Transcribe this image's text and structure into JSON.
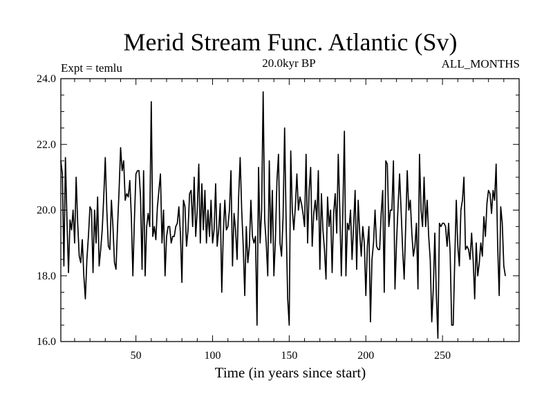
{
  "chart_data": {
    "type": "line",
    "title": "Merid Stream Func. Atlantic (Sv)",
    "experiment": "Expt = temlu",
    "subtitle": "20.0kyr BP",
    "period": "ALL_MONTHS",
    "xlabel": "Time (in years since start)",
    "ylabel": "",
    "xlim": [
      1,
      300
    ],
    "ylim": [
      16.0,
      24.0
    ],
    "xticks": [
      50,
      100,
      150,
      200,
      250
    ],
    "xtick_labels": [
      "50",
      "100",
      "150",
      "200",
      "250"
    ],
    "yticks": [
      16,
      18,
      20,
      22,
      24
    ],
    "ytick_labels": [
      "16.0",
      "18.0",
      "20.0",
      "22.0",
      "24.0"
    ],
    "grid": false,
    "series": [
      {
        "name": "Merid Stream Func. Atlantic",
        "color": "#000000",
        "x_start": 1,
        "x_step": 1,
        "values": [
          21.5,
          21.1,
          18.3,
          21.6,
          19.7,
          18.1,
          19.7,
          19.4,
          20.0,
          19.0,
          21.0,
          19.6,
          18.6,
          18.4,
          19.1,
          18.0,
          17.3,
          18.5,
          19.2,
          20.1,
          20.0,
          18.1,
          20.0,
          19.0,
          20.4,
          18.3,
          18.8,
          19.4,
          20.4,
          21.6,
          20.0,
          18.9,
          18.8,
          20.3,
          19.5,
          18.4,
          18.2,
          19.5,
          20.6,
          21.9,
          21.2,
          21.5,
          20.3,
          20.5,
          20.4,
          20.9,
          19.8,
          18.0,
          19.7,
          21.1,
          21.2,
          21.2,
          20.4,
          18.2,
          21.2,
          18.0,
          19.5,
          19.9,
          19.5,
          23.3,
          19.2,
          19.5,
          19.1,
          20.1,
          20.6,
          21.1,
          19.0,
          20.0,
          18.0,
          19.2,
          19.5,
          19.5,
          19.0,
          19.2,
          19.2,
          19.5,
          19.6,
          20.1,
          19.3,
          17.8,
          20.3,
          20.1,
          18.9,
          19.4,
          20.5,
          20.6,
          19.5,
          21.0,
          19.2,
          20.0,
          21.4,
          19.0,
          20.8,
          19.4,
          20.6,
          19.0,
          20.0,
          19.2,
          20.3,
          19.0,
          19.4,
          20.8,
          18.9,
          19.4,
          20.2,
          17.5,
          19.3,
          20.3,
          19.4,
          19.5,
          20.0,
          21.2,
          18.3,
          19.9,
          19.4,
          18.5,
          20.4,
          21.6,
          20.0,
          18.9,
          17.4,
          19.5,
          18.4,
          18.9,
          20.3,
          19.2,
          19.0,
          19.2,
          16.5,
          21.3,
          19.0,
          20.0,
          23.6,
          19.7,
          19.0,
          18.0,
          21.5,
          19.0,
          20.6,
          18.0,
          19.1,
          20.9,
          21.7,
          19.0,
          18.6,
          19.8,
          22.5,
          19.6,
          17.3,
          16.5,
          21.8,
          20.0,
          19.4,
          20.1,
          21.1,
          20.0,
          20.4,
          20.2,
          19.9,
          19.5,
          21.7,
          19.0,
          20.6,
          21.3,
          18.9,
          19.9,
          20.3,
          19.7,
          21.2,
          18.2,
          20.5,
          19.4,
          18.8,
          17.9,
          20.4,
          19.5,
          20.0,
          18.1,
          19.9,
          20.5,
          19.3,
          21.7,
          20.0,
          18.0,
          20.0,
          22.4,
          18.0,
          19.6,
          19.4,
          20.0,
          18.5,
          19.5,
          20.6,
          18.2,
          20.3,
          19.3,
          18.6,
          19.5,
          19.0,
          17.4,
          18.9,
          19.5,
          16.6,
          18.5,
          19.0,
          20.0,
          18.9,
          18.8,
          18.8,
          19.9,
          20.6,
          17.5,
          21.5,
          21.4,
          19.5,
          20.0,
          20.0,
          21.5,
          17.6,
          19.0,
          20.1,
          21.1,
          20.0,
          18.8,
          17.9,
          19.5,
          21.2,
          20.0,
          20.3,
          19.3,
          18.6,
          18.9,
          19.6,
          17.6,
          21.7,
          20.0,
          19.5,
          21.0,
          19.5,
          20.3,
          19.2,
          18.5,
          16.6,
          17.6,
          19.3,
          17.4,
          16.1,
          19.6,
          19.5,
          19.6,
          19.6,
          19.5,
          18.9,
          19.6,
          18.7,
          16.5,
          16.5,
          18.5,
          20.3,
          18.9,
          18.3,
          20.0,
          20.3,
          21.0,
          18.8,
          18.9,
          18.8,
          18.5,
          19.3,
          18.5,
          17.3,
          19.0,
          18.0,
          18.4,
          19.0,
          18.6,
          19.8,
          19.2,
          20.2,
          20.6,
          20.5,
          19.9,
          20.6,
          20.3,
          21.4,
          18.9,
          17.4,
          20.1,
          19.6,
          18.3,
          18.0
        ]
      }
    ]
  }
}
